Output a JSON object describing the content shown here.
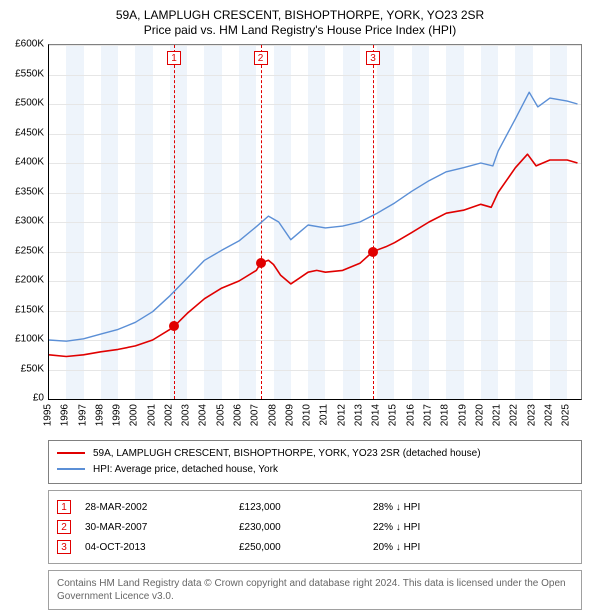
{
  "title_l1": "59A, LAMPLUGH CRESCENT, BISHOPTHORPE, YORK, YO23 2SR",
  "title_l2": "Price paid vs. HM Land Registry's House Price Index (HPI)",
  "chart": {
    "type": "line",
    "background_color": "#ffffff",
    "altband_color": "#eef4fb",
    "grid_color": "#e6e6e6",
    "ylim": [
      0,
      600
    ],
    "ytick_step": 50,
    "yticks": [
      "£0",
      "£50K",
      "£100K",
      "£150K",
      "£200K",
      "£250K",
      "£300K",
      "£350K",
      "£400K",
      "£450K",
      "£500K",
      "£550K",
      "£600K"
    ],
    "x_years": [
      1995,
      1996,
      1997,
      1998,
      1999,
      2000,
      2001,
      2002,
      2003,
      2004,
      2005,
      2006,
      2007,
      2008,
      2009,
      2010,
      2011,
      2012,
      2013,
      2014,
      2015,
      2016,
      2017,
      2018,
      2019,
      2020,
      2021,
      2022,
      2023,
      2024,
      2025
    ],
    "x_min": 1995,
    "x_max": 2025.8,
    "marker_dash_color": "#e00000",
    "series": [
      {
        "name": "address",
        "color": "#e00000",
        "width": 1.6,
        "points": [
          [
            1995.0,
            75
          ],
          [
            1996.0,
            72
          ],
          [
            1997.0,
            75
          ],
          [
            1998.0,
            80
          ],
          [
            1999.0,
            84
          ],
          [
            2000.0,
            90
          ],
          [
            2001.0,
            100
          ],
          [
            2002.0,
            118
          ],
          [
            2002.24,
            123
          ],
          [
            2003.0,
            145
          ],
          [
            2004.0,
            170
          ],
          [
            2005.0,
            188
          ],
          [
            2006.0,
            200
          ],
          [
            2007.0,
            218
          ],
          [
            2007.25,
            230
          ],
          [
            2007.7,
            235
          ],
          [
            2008.0,
            228
          ],
          [
            2008.4,
            210
          ],
          [
            2009.0,
            195
          ],
          [
            2009.5,
            205
          ],
          [
            2010.0,
            215
          ],
          [
            2010.5,
            218
          ],
          [
            2011.0,
            215
          ],
          [
            2012.0,
            218
          ],
          [
            2013.0,
            230
          ],
          [
            2013.76,
            250
          ],
          [
            2014.5,
            258
          ],
          [
            2015.0,
            265
          ],
          [
            2016.0,
            282
          ],
          [
            2017.0,
            300
          ],
          [
            2018.0,
            315
          ],
          [
            2019.0,
            320
          ],
          [
            2020.0,
            330
          ],
          [
            2020.6,
            325
          ],
          [
            2021.0,
            350
          ],
          [
            2022.0,
            392
          ],
          [
            2022.7,
            415
          ],
          [
            2023.2,
            395
          ],
          [
            2024.0,
            405
          ],
          [
            2025.0,
            405
          ],
          [
            2025.6,
            400
          ]
        ]
      },
      {
        "name": "hpi",
        "color": "#5b8fd6",
        "width": 1.4,
        "points": [
          [
            1995.0,
            100
          ],
          [
            1996.0,
            98
          ],
          [
            1997.0,
            102
          ],
          [
            1998.0,
            110
          ],
          [
            1999.0,
            118
          ],
          [
            2000.0,
            130
          ],
          [
            2001.0,
            148
          ],
          [
            2002.0,
            175
          ],
          [
            2003.0,
            205
          ],
          [
            2004.0,
            235
          ],
          [
            2005.0,
            252
          ],
          [
            2006.0,
            268
          ],
          [
            2007.0,
            292
          ],
          [
            2007.7,
            310
          ],
          [
            2008.3,
            300
          ],
          [
            2009.0,
            270
          ],
          [
            2009.6,
            285
          ],
          [
            2010.0,
            295
          ],
          [
            2011.0,
            290
          ],
          [
            2012.0,
            293
          ],
          [
            2013.0,
            300
          ],
          [
            2014.0,
            315
          ],
          [
            2015.0,
            332
          ],
          [
            2016.0,
            352
          ],
          [
            2017.0,
            370
          ],
          [
            2018.0,
            385
          ],
          [
            2019.0,
            392
          ],
          [
            2020.0,
            400
          ],
          [
            2020.7,
            395
          ],
          [
            2021.0,
            420
          ],
          [
            2022.0,
            475
          ],
          [
            2022.8,
            520
          ],
          [
            2023.3,
            495
          ],
          [
            2024.0,
            510
          ],
          [
            2025.0,
            505
          ],
          [
            2025.6,
            500
          ]
        ]
      }
    ],
    "markers": [
      {
        "idx": "1",
        "x": 2002.24,
        "y": 123
      },
      {
        "idx": "2",
        "x": 2007.25,
        "y": 230
      },
      {
        "idx": "3",
        "x": 2013.76,
        "y": 250
      }
    ]
  },
  "legend": {
    "r1_color": "#e00000",
    "r1_label": "59A, LAMPLUGH CRESCENT, BISHOPTHORPE, YORK, YO23 2SR (detached house)",
    "r2_color": "#5b8fd6",
    "r2_label": "HPI: Average price, detached house, York"
  },
  "events": [
    {
      "idx": "1",
      "date": "28-MAR-2002",
      "price": "£123,000",
      "diff": "28% ↓ HPI"
    },
    {
      "idx": "2",
      "date": "30-MAR-2007",
      "price": "£230,000",
      "diff": "22% ↓ HPI"
    },
    {
      "idx": "3",
      "date": "04-OCT-2013",
      "price": "£250,000",
      "diff": "20% ↓ HPI"
    }
  ],
  "attribution": "Contains HM Land Registry data © Crown copyright and database right 2024. This data is licensed under the Open Government Licence v3.0."
}
